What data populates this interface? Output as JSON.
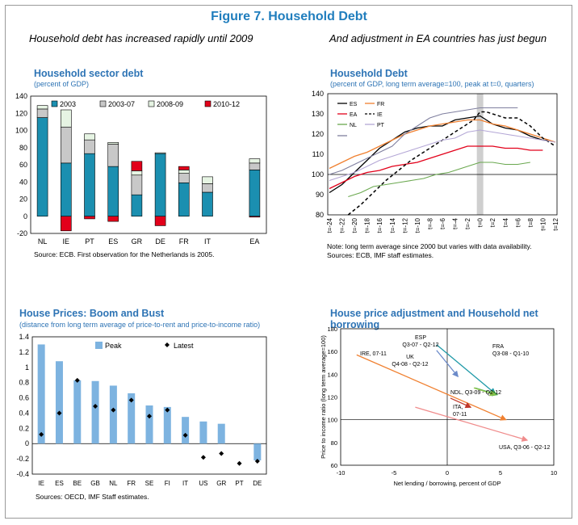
{
  "figure_title": "Figure 7. Household Debt",
  "subheads": {
    "left": "Household debt has increased rapidly until 2009",
    "right": "And adjustment in EA countries has just begun"
  },
  "colors": {
    "title_blue": "#1f7dbd",
    "bar_2003": "#1b8fb0",
    "bar_2003_07": "#c8c8c8",
    "bar_2008_09": "#e6f4e3",
    "bar_2010_12": "#e2001a",
    "es": "#000000",
    "fr": "#f08030",
    "ea": "#e2001a",
    "ie": "#000000",
    "nl": "#6aa84f",
    "pt": "#b4a7d6",
    "peak_bar": "#7db3e0",
    "house_ire": "#f08030",
    "house_usa": "#f08c8c"
  },
  "chart_data": [
    {
      "id": "hh_debt",
      "type": "bar",
      "title": "Household sector debt",
      "subtitle": "(percent of GDP)",
      "categories": [
        "NL",
        "IE",
        "PT",
        "ES",
        "GR",
        "DE",
        "FR",
        "IT",
        "EA"
      ],
      "series": [
        {
          "name": "2003",
          "values": [
            115,
            62,
            73,
            58,
            25,
            73,
            39,
            28,
            54
          ]
        },
        {
          "name": "2003-07",
          "values": [
            10,
            42,
            16,
            26,
            23,
            0,
            11,
            10,
            8
          ]
        },
        {
          "name": "2008-09",
          "values": [
            4,
            20,
            7,
            2,
            5,
            1,
            4,
            8,
            5
          ]
        },
        {
          "name": "2010-12",
          "values": [
            0,
            -17,
            -3,
            -6,
            11,
            -11,
            4,
            0,
            -1
          ]
        }
      ],
      "ylim": [
        -20,
        140
      ],
      "yticks": [
        -20,
        0,
        20,
        40,
        60,
        80,
        100,
        120,
        140
      ],
      "legend": "top",
      "source": "Source: ECB. First observation for the Netherlands is 2005."
    },
    {
      "id": "hh_debt_index",
      "type": "line",
      "title": "Household Debt",
      "subtitle": "(percent of GDP, long term average=100, peak at t=0, quarters)",
      "x": [
        -24,
        -22,
        -20,
        -18,
        -16,
        -14,
        -12,
        -10,
        -8,
        -6,
        -4,
        -2,
        0,
        2,
        4,
        6,
        8,
        10,
        12
      ],
      "xticklabels": [
        "t=-24",
        "t=-22",
        "t=-20",
        "t=-18",
        "t=-16",
        "t=-14",
        "t=-12",
        "t=-10",
        "t=-8",
        "t=-6",
        "t=-4",
        "t=-2",
        "t=0",
        "t=2",
        "t=4",
        "t=6",
        "t=8",
        "t=10",
        "t=12"
      ],
      "series": [
        {
          "name": "ES",
          "x": [
            -24,
            -22,
            -20,
            -18,
            -16,
            -14,
            -12,
            -10,
            -8,
            -6,
            -4,
            -2,
            0,
            2,
            4,
            6,
            8,
            10,
            11
          ],
          "values": [
            91,
            95,
            101,
            107,
            113,
            117,
            121,
            123,
            124,
            124,
            127,
            128,
            129,
            125,
            123,
            122,
            119,
            117,
            117
          ]
        },
        {
          "name": "FR",
          "x": [
            -24,
            -22,
            -20,
            -18,
            -16,
            -14,
            -12,
            -10,
            -8,
            -6,
            -4,
            -2,
            0,
            2,
            4,
            6,
            8,
            10,
            12
          ],
          "values": [
            103,
            106,
            109,
            111,
            114,
            117,
            120,
            122,
            124,
            125,
            126,
            127,
            127,
            125,
            124,
            122,
            120,
            118,
            116
          ]
        },
        {
          "name": "EA",
          "x": [
            -24,
            -22,
            -20,
            -18,
            -16,
            -14,
            -12,
            -10,
            -8,
            -6,
            -4,
            -2,
            0,
            2,
            4,
            6,
            8,
            10
          ],
          "values": [
            93,
            96,
            99,
            101,
            102,
            104,
            105,
            106,
            108,
            110,
            112,
            114,
            114,
            114,
            113,
            113,
            112,
            112
          ]
        },
        {
          "name": "IE",
          "x": [
            -21,
            -19,
            -17,
            -15,
            -13,
            -11,
            -9,
            -7,
            -5,
            -3,
            -1,
            0,
            1,
            2,
            4,
            6,
            8,
            10,
            12
          ],
          "values": [
            80,
            85,
            91,
            97,
            102,
            107,
            111,
            115,
            119,
            123,
            127,
            131,
            131,
            130,
            128,
            128,
            124,
            118,
            114
          ]
        },
        {
          "name": "NL",
          "x": [
            -21,
            -19,
            -17,
            -15,
            -13,
            -11,
            -9,
            -7,
            -5,
            -3,
            -1,
            0,
            2,
            4,
            6,
            8
          ],
          "values": [
            89,
            91,
            94,
            95,
            96,
            97,
            98,
            100,
            101,
            103,
            105,
            106,
            106,
            105,
            105,
            106
          ]
        },
        {
          "name": "PT",
          "x": [
            -24,
            -22,
            -20,
            -18,
            -16,
            -14,
            -12,
            -10,
            -8,
            -6,
            -4,
            -2,
            0,
            2,
            4,
            6,
            8,
            10,
            12
          ],
          "values": [
            97,
            99,
            101,
            104,
            107,
            109,
            111,
            113,
            115,
            117,
            118,
            121,
            122,
            121,
            120,
            119,
            118,
            117,
            116
          ]
        },
        {
          "name": "",
          "x": [
            -24,
            -22,
            -20,
            -18,
            -16,
            -14,
            -12,
            -10,
            -8,
            -6,
            -4,
            -2,
            0,
            2,
            4,
            6
          ],
          "values": [
            100,
            102,
            105,
            108,
            111,
            114,
            120,
            124,
            128,
            130,
            131,
            132,
            133,
            133,
            133,
            133
          ]
        }
      ],
      "ylim": [
        80,
        140
      ],
      "yticks": [
        80,
        90,
        100,
        110,
        120,
        130,
        140
      ],
      "reference_line": 100,
      "peak_band_x": 0,
      "legend": "top-left",
      "note": "Note: long term average since 2000 but varies with data availability.",
      "source": "Sources: ECB, IMF staff estimates."
    },
    {
      "id": "house_prices",
      "type": "bar",
      "title": "House Prices: Boom and Bust",
      "subtitle": "(distance from long term average of price-to-rent and price-to-income ratio)",
      "categories": [
        "IE",
        "ES",
        "BE",
        "GB",
        "NL",
        "FR",
        "SE",
        "FI",
        "IT",
        "US",
        "GR",
        "PT",
        "DE"
      ],
      "series": [
        {
          "name": "Peak",
          "values": [
            1.3,
            1.08,
            0.83,
            0.82,
            0.76,
            0.66,
            0.5,
            0.48,
            0.35,
            0.29,
            0.26,
            0,
            -0.22
          ]
        },
        {
          "name": "Latest",
          "values": [
            0.12,
            0.4,
            0.83,
            0.49,
            0.44,
            0.57,
            0.36,
            0.44,
            0.11,
            -0.18,
            -0.13,
            -0.26,
            -0.23
          ]
        }
      ],
      "ylim": [
        -0.4,
        1.4
      ],
      "yticks": [
        -0.4,
        -0.2,
        0,
        0.2,
        0.4,
        0.6,
        0.8,
        1,
        1.2,
        1.4
      ],
      "yticklabels": [
        "-0.4",
        "-0.2",
        "0",
        "0.2",
        "0.4",
        "0.6",
        "0.8",
        "1",
        "1.2",
        "1.4"
      ],
      "legend": "top",
      "source": "Sources: OECD, IMF Staff estimates."
    },
    {
      "id": "house_adj",
      "type": "scatter",
      "title": "House price adjustment and Household net borrowing",
      "xlabel": "Net lending / borrowing, percent of GDP",
      "ylabel": "Price to income ratio (long term average=100)",
      "xlim": [
        -10,
        10
      ],
      "ylim": [
        60,
        180
      ],
      "xticks": [
        -10,
        -5,
        0,
        5,
        10
      ],
      "yticks": [
        60,
        80,
        100,
        120,
        140,
        160,
        180
      ],
      "segments": [
        {
          "label": "IRE, 07-11",
          "from": [
            -8.5,
            157
          ],
          "to": [
            5.5,
            100
          ],
          "color": "#f08030"
        },
        {
          "label": "USA, Q3-06 - Q2-12",
          "from": [
            -3,
            111
          ],
          "to": [
            7.5,
            82
          ],
          "color": "#f08c8c"
        },
        {
          "label": "ESP\nQ3-07 - Q2-12",
          "from": [
            -1,
            166
          ],
          "to": [
            4.5,
            123
          ],
          "color": "#1f9aa8"
        },
        {
          "label": "UK\nQ4-08 - Q2-12",
          "from": [
            -1,
            161
          ],
          "to": [
            1,
            138
          ],
          "color": "#6b8ac9"
        },
        {
          "label": "FRA\nQ3-08 - Q1-10",
          "from": [
            2.6,
            128
          ],
          "to": [
            4.7,
            122
          ],
          "color": "#4caf50"
        },
        {
          "label": "NDL, Q3-09 - Q2-12",
          "from": [
            2.5,
            128
          ],
          "to": [
            4.5,
            122
          ],
          "color": "#8bc34a"
        },
        {
          "label": "ITA,\n07-11",
          "from": [
            0.3,
            119
          ],
          "to": [
            2.2,
            111
          ],
          "color": "#c0392b"
        }
      ]
    }
  ]
}
